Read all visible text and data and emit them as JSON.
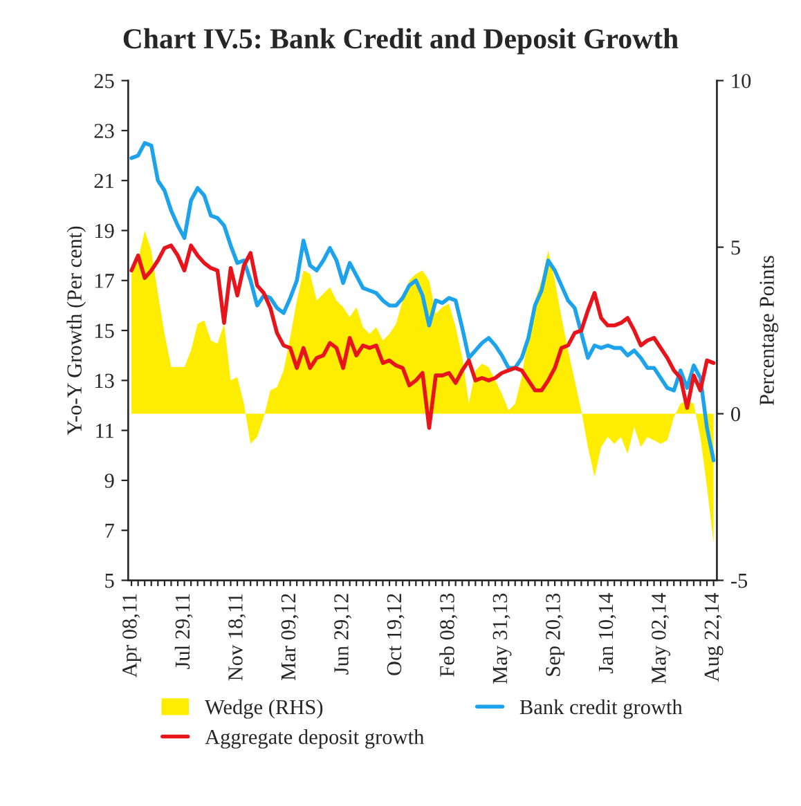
{
  "chart_data": {
    "type": "line",
    "title": "Chart IV.5: Bank Credit and Deposit Growth",
    "ylabel": "Y-o-Y Growth (Per cent)",
    "y2label": "Percentage Points",
    "categories": [
      "Apr 08,11",
      null,
      null,
      null,
      null,
      null,
      null,
      null,
      "Jul 29,11",
      null,
      null,
      null,
      null,
      null,
      null,
      null,
      "Nov 18,11",
      null,
      null,
      null,
      null,
      null,
      null,
      null,
      "Mar 09,12",
      null,
      null,
      null,
      null,
      null,
      null,
      null,
      "Jun 29,12",
      null,
      null,
      null,
      null,
      null,
      null,
      null,
      "Oct 19,12",
      null,
      null,
      null,
      null,
      null,
      null,
      null,
      "Feb 08,13",
      null,
      null,
      null,
      null,
      null,
      null,
      null,
      "May 31,13",
      null,
      null,
      null,
      null,
      null,
      null,
      null,
      "Sep 20,13",
      null,
      null,
      null,
      null,
      null,
      null,
      null,
      "Jan 10,14",
      null,
      null,
      null,
      null,
      null,
      null,
      null,
      "May 02,14",
      null,
      null,
      null,
      null,
      null,
      null,
      null,
      "Aug 22,14"
    ],
    "series": [
      {
        "name": "Wedge (RHS)",
        "type": "area",
        "axis": "y2",
        "color": "#ffed00",
        "values": [
          4.2,
          4.6,
          5.5,
          4.9,
          3.6,
          2.4,
          1.4,
          1.4,
          1.4,
          1.9,
          2.7,
          2.8,
          2.2,
          2.1,
          2.7,
          1.0,
          1.1,
          0.3,
          -0.9,
          -0.7,
          -0.1,
          0.7,
          0.8,
          1.3,
          2.3,
          3.4,
          4.3,
          4.2,
          3.4,
          3.6,
          3.8,
          3.4,
          3.2,
          2.9,
          3.2,
          2.6,
          2.4,
          2.6,
          2.2,
          2.4,
          2.7,
          3.4,
          4.0,
          4.2,
          4.3,
          4.0,
          3.0,
          3.2,
          3.3,
          2.6,
          1.7,
          0.3,
          1.3,
          1.5,
          1.4,
          1.0,
          0.6,
          0.1,
          0.3,
          1.1,
          2.4,
          3.4,
          4.0,
          4.9,
          4.0,
          2.9,
          1.9,
          1.0,
          0.1,
          -1.0,
          -1.9,
          -1.0,
          -0.7,
          -0.9,
          -0.7,
          -1.2,
          -0.4,
          -1.0,
          -0.7,
          -0.8,
          -0.9,
          -0.8,
          -0.1,
          0.3,
          0.4,
          0.3,
          -0.7,
          -2.2,
          -3.9
        ]
      },
      {
        "name": "Bank credit growth",
        "color": "#1ca3ec",
        "values": [
          21.9,
          22.0,
          22.5,
          22.4,
          21.0,
          20.6,
          19.8,
          19.2,
          18.7,
          20.2,
          20.7,
          20.4,
          19.6,
          19.5,
          19.2,
          18.4,
          17.7,
          17.8,
          17.0,
          16.0,
          16.4,
          16.3,
          15.9,
          15.7,
          16.3,
          17.0,
          18.6,
          17.6,
          17.4,
          17.8,
          18.3,
          17.8,
          16.9,
          17.7,
          17.2,
          16.7,
          16.6,
          16.5,
          16.2,
          16.0,
          16.0,
          16.3,
          16.8,
          17.0,
          16.4,
          15.2,
          16.2,
          16.1,
          16.3,
          16.2,
          15.1,
          13.9,
          14.2,
          14.5,
          14.7,
          14.4,
          14.0,
          13.5,
          13.5,
          13.9,
          14.7,
          16.0,
          16.6,
          17.8,
          17.4,
          16.8,
          16.2,
          15.9,
          14.9,
          13.9,
          14.4,
          14.3,
          14.4,
          14.3,
          14.3,
          14.0,
          14.2,
          13.9,
          13.5,
          13.5,
          13.1,
          12.7,
          12.6,
          13.4,
          12.7,
          13.6,
          13.1,
          11.1,
          9.8
        ]
      },
      {
        "name": "Aggregate deposit growth",
        "color": "#e8141c",
        "values": [
          17.4,
          18.0,
          17.1,
          17.4,
          17.8,
          18.3,
          18.4,
          18.0,
          17.4,
          18.4,
          18.0,
          17.7,
          17.5,
          17.4,
          15.3,
          17.5,
          16.4,
          17.6,
          18.1,
          16.8,
          16.5,
          15.9,
          14.9,
          14.4,
          14.3,
          13.5,
          14.3,
          13.5,
          13.9,
          14.0,
          14.5,
          14.3,
          13.5,
          14.7,
          14.0,
          14.4,
          14.3,
          14.4,
          13.7,
          13.8,
          13.6,
          13.5,
          12.8,
          13.0,
          13.3,
          11.1,
          13.2,
          13.2,
          13.3,
          12.9,
          13.4,
          13.8,
          13.0,
          13.1,
          13.0,
          13.1,
          13.3,
          13.4,
          13.5,
          13.4,
          13.0,
          12.6,
          12.6,
          13.0,
          13.5,
          14.3,
          14.4,
          14.9,
          15.0,
          15.8,
          16.5,
          15.5,
          15.2,
          15.2,
          15.3,
          15.5,
          15.0,
          14.4,
          14.6,
          14.7,
          14.3,
          13.9,
          13.4,
          13.1,
          11.9,
          13.2,
          12.6,
          13.8,
          13.7
        ]
      }
    ],
    "ylim": [
      5,
      25
    ],
    "yticks": [
      5,
      7,
      9,
      11,
      13,
      15,
      17,
      19,
      21,
      23,
      25
    ],
    "y2lim": [
      -5,
      10
    ],
    "y2ticks": [
      -5,
      0,
      5,
      10
    ],
    "legend": "bottom",
    "grid": false
  }
}
